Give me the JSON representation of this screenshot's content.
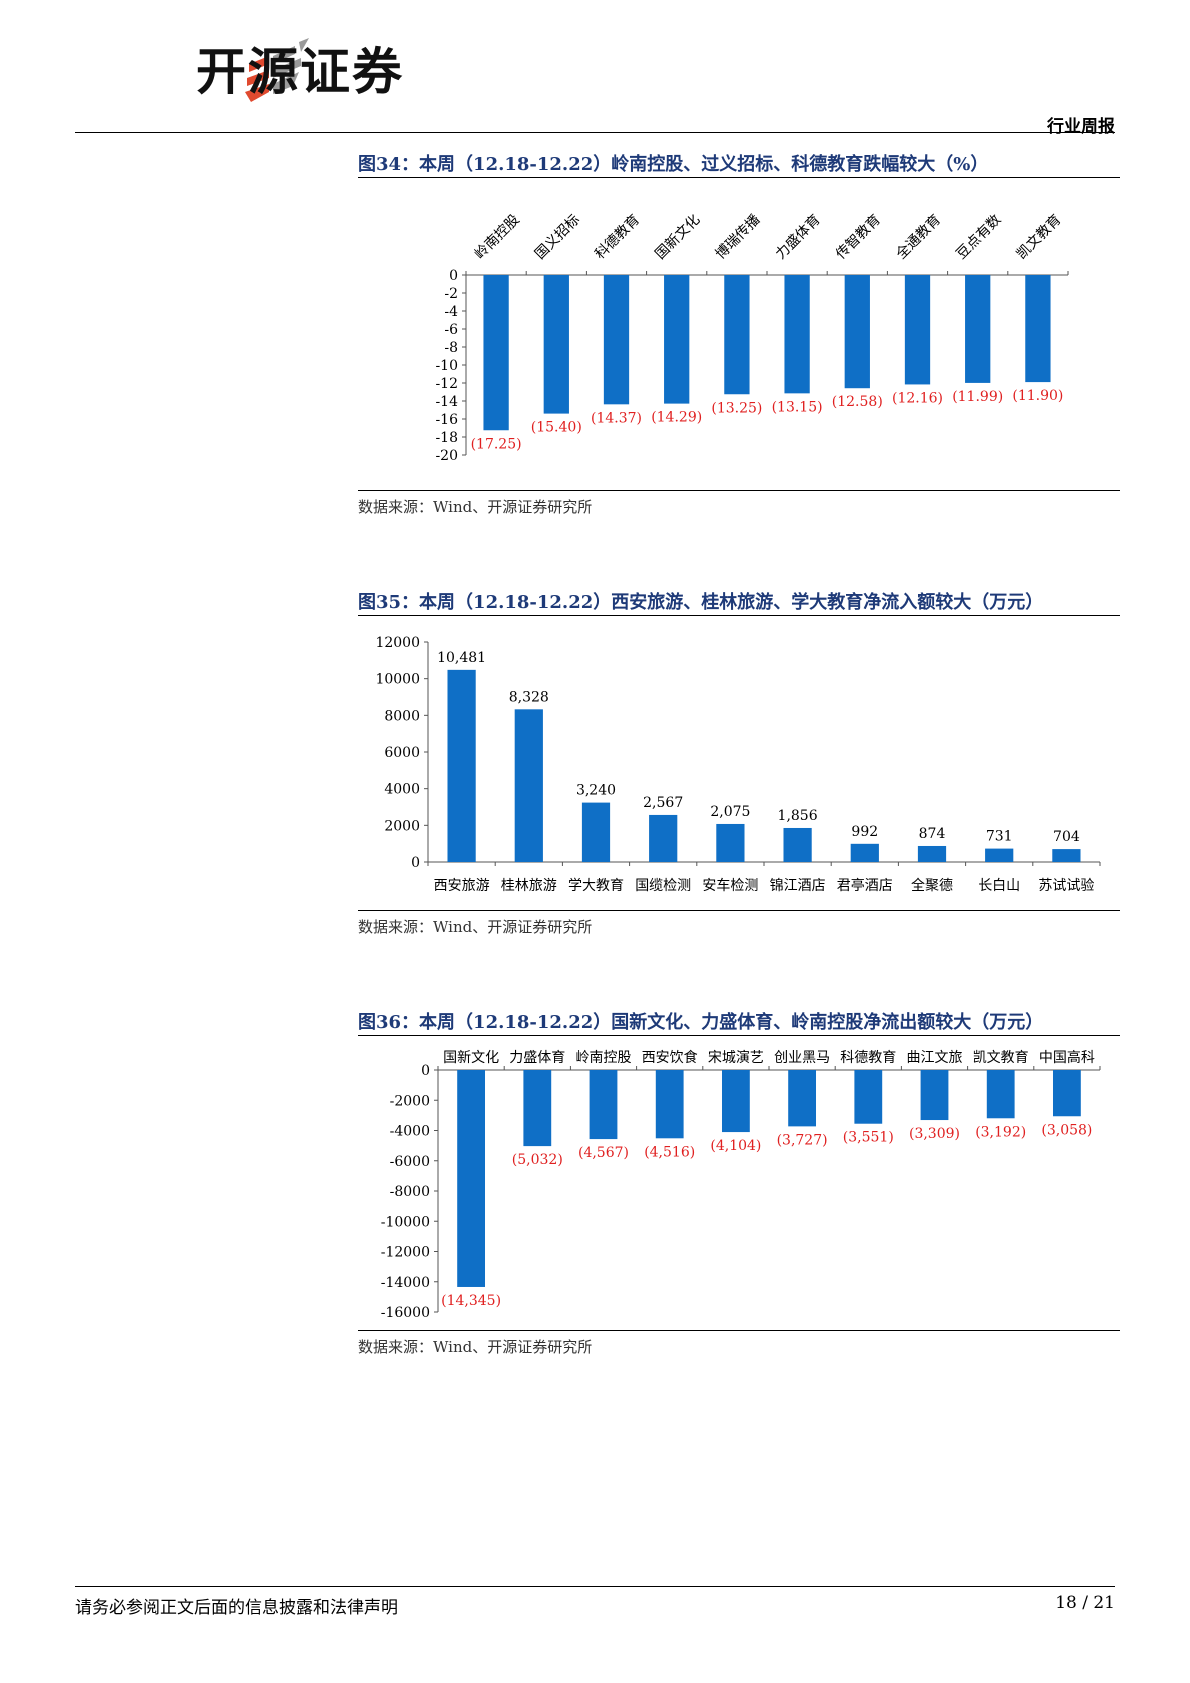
{
  "header": {
    "brand": "开源证券",
    "report_type": "行业周报"
  },
  "figures": [
    {
      "title": "图34：本周（12.18-12.22）岭南控股、过义招标、科德教育跌幅较大（%）",
      "source": "数据来源：Wind、开源证券研究所"
    },
    {
      "title": "图35：本周（12.18-12.22）西安旅游、桂林旅游、学大教育净流入额较大（万元）",
      "source": "数据来源：Wind、开源证券研究所"
    },
    {
      "title": "图36：本周（12.18-12.22）国新文化、力盛体育、岭南控股净流出额较大（万元）",
      "source": "数据来源：Wind、开源证券研究所"
    }
  ],
  "chart_data": [
    {
      "type": "bar",
      "categories": [
        "岭南控股",
        "国义招标",
        "科德教育",
        "国新文化",
        "博瑞传播",
        "力盛体育",
        "传智教育",
        "全通教育",
        "豆点有数",
        "凯文教育"
      ],
      "values": [
        -17.25,
        -15.4,
        -14.37,
        -14.29,
        -13.25,
        -13.15,
        -12.58,
        -12.16,
        -11.99,
        -11.9
      ],
      "value_labels": [
        "(17.25)",
        "(15.40)",
        "(14.37)",
        "(14.29)",
        "(13.25)",
        "(13.15)",
        "(12.58)",
        "(12.16)",
        "(11.99)",
        "(11.90)"
      ],
      "yticks": [
        "0",
        "-2",
        "-4",
        "-6",
        "-8",
        "-10",
        "-12",
        "-14",
        "-16",
        "-18",
        "-20"
      ],
      "ylim": [
        -20,
        0
      ],
      "category_position": "top",
      "category_rotation": "rotated",
      "bar_color": "#0f6fc6",
      "label_color": "#e02020",
      "grid": false
    },
    {
      "type": "bar",
      "categories": [
        "西安旅游",
        "桂林旅游",
        "学大教育",
        "国缆检测",
        "安车检测",
        "锦江酒店",
        "君亭酒店",
        "全聚德",
        "长白山",
        "苏试试验"
      ],
      "values": [
        10481,
        8328,
        3240,
        2567,
        2075,
        1856,
        992,
        874,
        731,
        704
      ],
      "value_labels": [
        "10,481",
        "8,328",
        "3,240",
        "2,567",
        "2,075",
        "1,856",
        "992",
        "874",
        "731",
        "704"
      ],
      "yticks": [
        "12000",
        "10000",
        "8000",
        "6000",
        "4000",
        "2000",
        "0"
      ],
      "ylim": [
        0,
        12000
      ],
      "category_position": "bottom",
      "bar_color": "#0f6fc6",
      "label_color": "#000000",
      "grid": false
    },
    {
      "type": "bar",
      "categories": [
        "国新文化",
        "力盛体育",
        "岭南控股",
        "西安饮食",
        "宋城演艺",
        "创业黑马",
        "科德教育",
        "曲江文旅",
        "凯文教育",
        "中国高科"
      ],
      "values": [
        -14345,
        -5032,
        -4567,
        -4516,
        -4104,
        -3727,
        -3551,
        -3309,
        -3192,
        -3058
      ],
      "value_labels": [
        "(14,345)",
        "(5,032)",
        "(4,567)",
        "(4,516)",
        "(4,104)",
        "(3,727)",
        "(3,551)",
        "(3,309)",
        "(3,192)",
        "(3,058)"
      ],
      "yticks": [
        "0",
        "-2000",
        "-4000",
        "-6000",
        "-8000",
        "-10000",
        "-12000",
        "-14000",
        "-16000"
      ],
      "ylim": [
        -16000,
        0
      ],
      "category_position": "top",
      "bar_color": "#0f6fc6",
      "label_color": "#e02020",
      "grid": false
    }
  ],
  "footer": {
    "disclaimer": "请务必参阅正文后面的信息披露和法律声明",
    "page": "18 / 21"
  }
}
